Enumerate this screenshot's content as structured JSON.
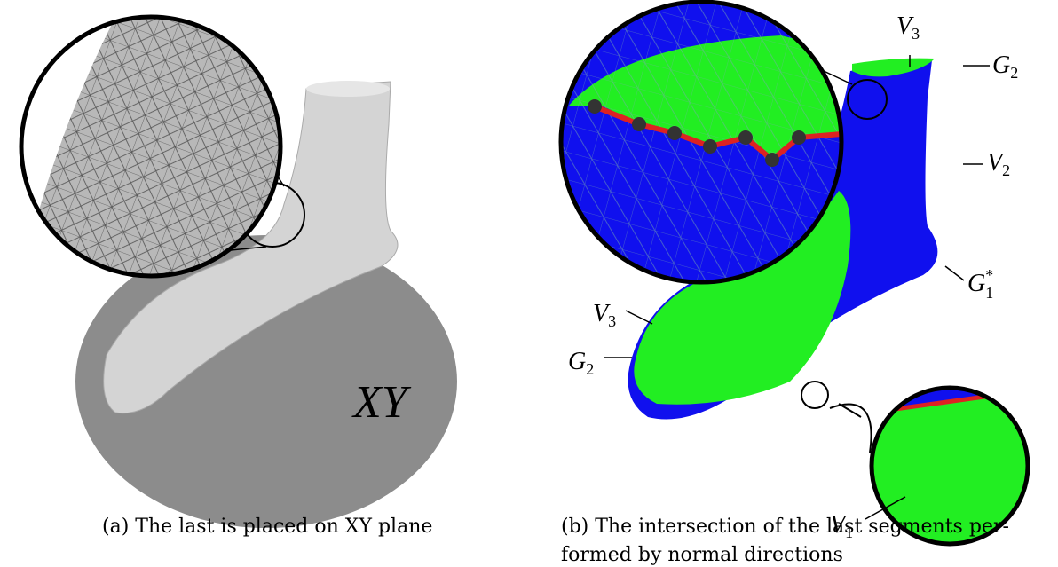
{
  "panel_a": {
    "plane_label": "XY",
    "caption": "(a) The last is placed on XY plane"
  },
  "panel_b": {
    "labels": [
      {
        "symbol": "V",
        "subscript": "3"
      },
      {
        "symbol": "G",
        "subscript": "2"
      },
      {
        "symbol": "V",
        "subscript": "2"
      },
      {
        "symbol": "G",
        "subscript": "1",
        "superscript": "*"
      },
      {
        "symbol": "V",
        "subscript": "3"
      },
      {
        "symbol": "G",
        "subscript": "2"
      },
      {
        "symbol": "V",
        "subscript": "1"
      }
    ],
    "caption_lines": [
      "(b) The intersection of the last segments per-",
      "formed by normal directions"
    ]
  }
}
